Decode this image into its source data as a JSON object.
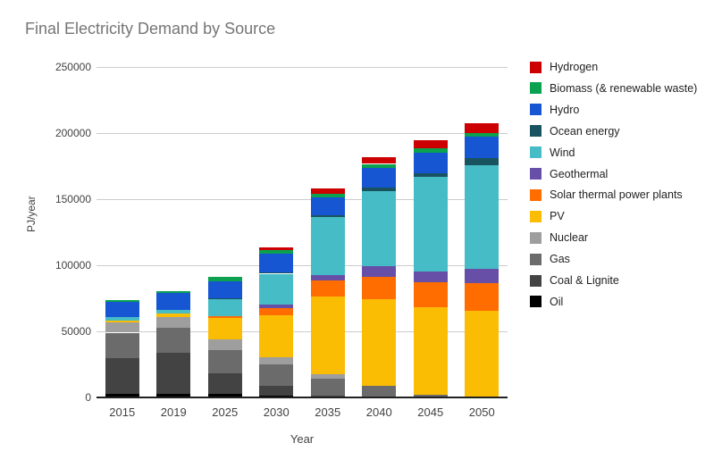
{
  "title": "Final Electricity Demand by Source",
  "xlabel": "Year",
  "ylabel": "PJ/year",
  "chart_data": {
    "type": "bar",
    "stacked": true,
    "title": "Final Electricity Demand by Source",
    "xlabel": "Year",
    "ylabel": "PJ/year",
    "ylim": [
      0,
      250000
    ],
    "grid": true,
    "legend_position": "right",
    "categories": [
      "2015",
      "2019",
      "2025",
      "2030",
      "2035",
      "2040",
      "2045",
      "2050"
    ],
    "y_ticks": [
      {
        "value": 0,
        "label": "0"
      },
      {
        "value": 50000,
        "label": "50000"
      },
      {
        "value": 100000,
        "label": "100000"
      },
      {
        "value": 150000,
        "label": "150000"
      },
      {
        "value": 200000,
        "label": "200000"
      },
      {
        "value": 250000,
        "label": "250000"
      }
    ],
    "series": [
      {
        "name": "Hydrogen",
        "color": "#cc0000",
        "values": [
          0,
          0,
          0,
          1800,
          3800,
          5000,
          6000,
          8000
        ]
      },
      {
        "name": "Biomass (& renewable waste)",
        "color": "#0aa14f",
        "values": [
          1300,
          1300,
          3000,
          3100,
          2900,
          2900,
          3300,
          2700
        ]
      },
      {
        "name": "Hydro",
        "color": "#1656d2",
        "values": [
          11500,
          12500,
          13000,
          13800,
          13300,
          15000,
          15500,
          16000
        ]
      },
      {
        "name": "Ocean energy",
        "color": "#19535f",
        "values": [
          0,
          0,
          800,
          1300,
          1800,
          2700,
          3000,
          5500
        ]
      },
      {
        "name": "Wind",
        "color": "#46bdc6",
        "values": [
          2700,
          3300,
          13000,
          23500,
          43500,
          57000,
          71500,
          78000
        ]
      },
      {
        "name": "Geothermal",
        "color": "#674ea7",
        "values": [
          0,
          0,
          0,
          2700,
          4200,
          7800,
          7800,
          11000
        ]
      },
      {
        "name": "Solar thermal power plants",
        "color": "#ff6d01",
        "values": [
          0,
          0,
          1300,
          5300,
          12300,
          17300,
          19000,
          21000
        ]
      },
      {
        "name": "PV",
        "color": "#fbbc04",
        "values": [
          1300,
          2700,
          16000,
          32000,
          59000,
          65500,
          66500,
          65500
        ]
      },
      {
        "name": "Nuclear",
        "color": "#9e9e9e",
        "values": [
          8000,
          8000,
          8000,
          5300,
          3300,
          0,
          0,
          0
        ]
      },
      {
        "name": "Gas",
        "color": "#6b6b6b",
        "values": [
          19000,
          19000,
          18000,
          16000,
          12500,
          8500,
          2000,
          0
        ]
      },
      {
        "name": "Coal & Lignite",
        "color": "#434343",
        "values": [
          27000,
          30500,
          15500,
          7500,
          1500,
          0,
          0,
          0
        ]
      },
      {
        "name": "Oil",
        "color": "#000000",
        "values": [
          3000,
          3000,
          2500,
          1300,
          0,
          0,
          0,
          0
        ]
      }
    ],
    "colors": {
      "grid": "#cccccc",
      "axis_line": "#212121",
      "title_text": "#757575",
      "tick_text": "#424242",
      "legend_text": "#1f1f1f",
      "background": "#ffffff"
    }
  }
}
